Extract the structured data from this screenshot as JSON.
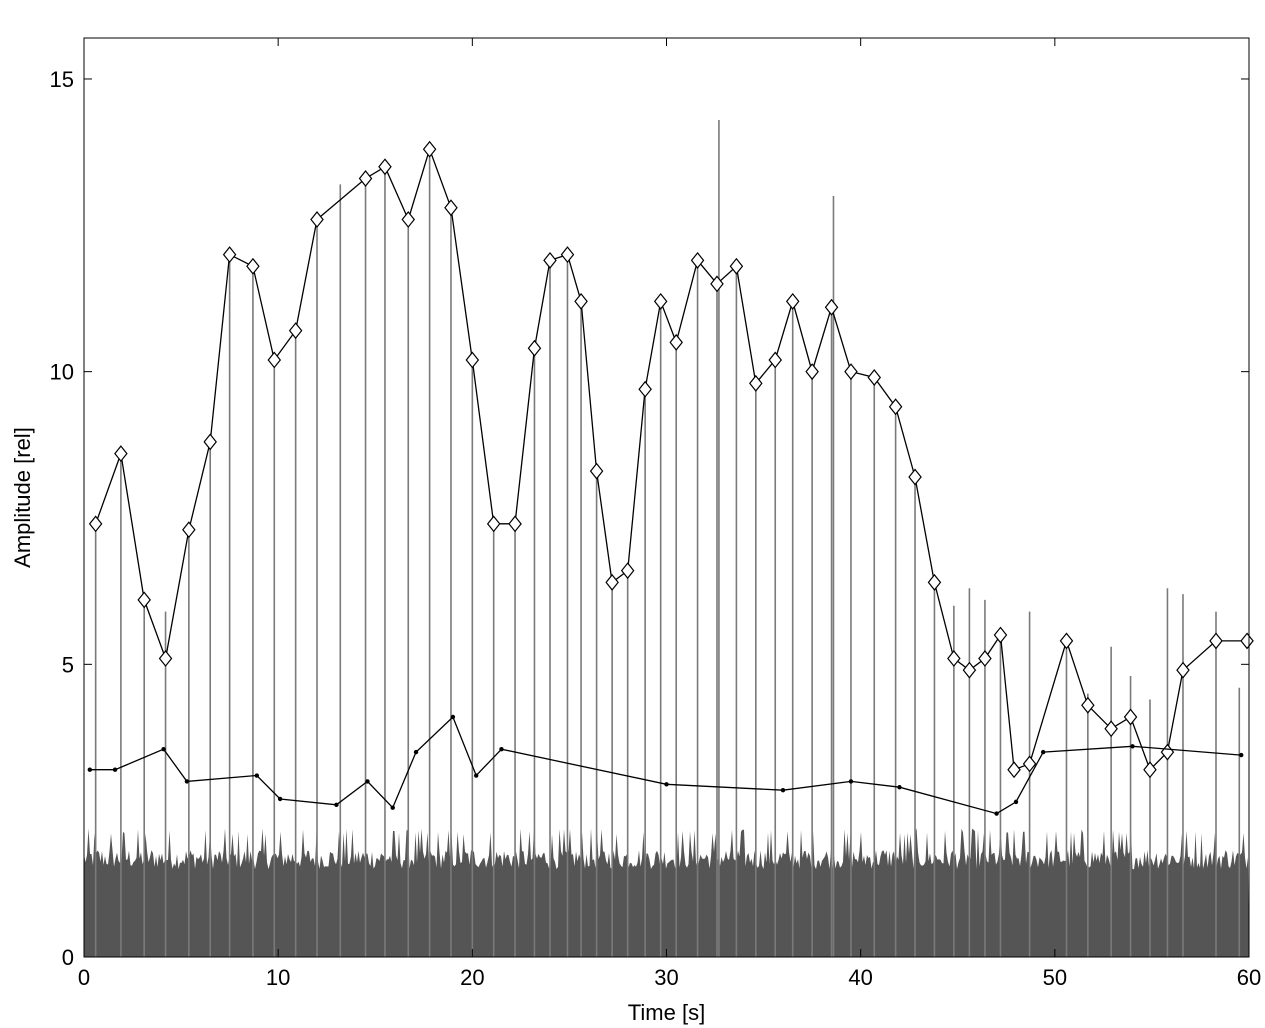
{
  "chart_data": {
    "type": "line",
    "title": "",
    "xlabel": "Time [s]",
    "ylabel": "Amplitude [rel]",
    "xlim": [
      0,
      60
    ],
    "ylim": [
      0,
      15.7
    ],
    "xticks": [
      0,
      10,
      20,
      30,
      40,
      50,
      60
    ],
    "yticks": [
      0,
      5,
      10,
      15
    ],
    "grid": false,
    "legend": "none",
    "colors": {
      "peak_lines": "#7a7a7a",
      "noise": "#555555",
      "series": "#000000"
    },
    "series": [
      {
        "marker": "diamond",
        "x": [
          0.6,
          1.9,
          3.1,
          4.2,
          5.4,
          6.5,
          7.5,
          8.7,
          9.8,
          10.9,
          12.0,
          14.5,
          15.5,
          16.7,
          17.8,
          18.9,
          20.0,
          21.1,
          22.2,
          23.2,
          24.0,
          24.9,
          25.6,
          26.4,
          27.2,
          28.0,
          28.9,
          29.7,
          30.5,
          31.6,
          32.6,
          33.6,
          34.6,
          35.6,
          36.5,
          37.5,
          38.5,
          39.5,
          40.7,
          41.8,
          42.8,
          43.8,
          44.8,
          45.6,
          46.4,
          47.2,
          47.9,
          48.7,
          50.6,
          51.7,
          52.9,
          53.9,
          54.9,
          55.8,
          56.6,
          58.3,
          59.9
        ],
        "values": [
          7.4,
          8.6,
          6.1,
          5.1,
          7.3,
          8.8,
          12.0,
          11.8,
          10.2,
          10.7,
          12.6,
          13.3,
          13.5,
          12.6,
          13.8,
          12.8,
          10.2,
          7.4,
          7.4,
          10.4,
          11.9,
          12.0,
          11.2,
          8.3,
          6.4,
          6.6,
          9.7,
          11.2,
          10.5,
          11.9,
          11.5,
          11.8,
          9.8,
          10.2,
          11.2,
          10.0,
          11.1,
          10.0,
          9.9,
          9.4,
          8.2,
          6.4,
          5.1,
          4.9,
          5.1,
          5.5,
          3.2,
          3.3,
          5.4,
          4.3,
          3.9,
          4.1,
          3.2,
          3.5,
          4.9,
          5.4,
          5.4
        ]
      },
      {
        "marker": "dot",
        "x": [
          0.3,
          1.6,
          4.1,
          5.3,
          8.9,
          10.1,
          13.0,
          14.6,
          15.9,
          17.1,
          19.0,
          20.2,
          21.5,
          30.0,
          36.0,
          39.5,
          42.0,
          47.0,
          48.0,
          49.4,
          54.0,
          59.6
        ],
        "values": [
          3.2,
          3.2,
          3.55,
          3.0,
          3.1,
          2.7,
          2.6,
          3.0,
          2.55,
          3.5,
          4.1,
          3.1,
          3.55,
          2.95,
          2.85,
          3.0,
          2.9,
          2.45,
          2.65,
          3.5,
          3.6,
          3.45
        ]
      }
    ],
    "peak_lines": {
      "x": [
        0.6,
        1.9,
        3.1,
        4.2,
        5.4,
        6.5,
        7.5,
        8.7,
        9.8,
        10.9,
        12.0,
        13.2,
        14.5,
        15.5,
        16.7,
        17.8,
        18.9,
        20.0,
        21.1,
        22.2,
        23.2,
        24.0,
        24.9,
        25.6,
        26.4,
        27.2,
        28.0,
        28.9,
        29.7,
        30.5,
        31.6,
        32.6,
        32.7,
        33.6,
        34.6,
        35.6,
        36.5,
        37.5,
        38.5,
        38.6,
        39.5,
        40.7,
        41.8,
        42.8,
        43.8,
        44.8,
        45.6,
        46.4,
        47.2,
        48.7,
        50.6,
        51.7,
        52.9,
        53.9,
        54.9,
        55.8,
        56.6,
        58.3,
        59.5
      ],
      "values": [
        7.4,
        8.6,
        6.1,
        5.9,
        7.3,
        8.8,
        12.0,
        11.8,
        10.2,
        10.7,
        12.6,
        13.2,
        13.3,
        13.5,
        12.6,
        13.8,
        12.8,
        10.2,
        7.4,
        7.4,
        10.4,
        11.9,
        12.0,
        11.2,
        8.3,
        6.4,
        6.6,
        9.7,
        11.2,
        10.5,
        11.9,
        11.5,
        14.3,
        11.8,
        9.8,
        10.2,
        11.2,
        10.0,
        11.1,
        13.0,
        10.0,
        9.9,
        9.4,
        8.2,
        6.4,
        6.0,
        6.3,
        6.1,
        5.5,
        5.9,
        5.4,
        4.5,
        5.3,
        4.8,
        4.4,
        6.3,
        6.2,
        5.9,
        4.6
      ]
    },
    "noise_floor": {
      "base": 1.6,
      "peak": 2.2
    }
  }
}
